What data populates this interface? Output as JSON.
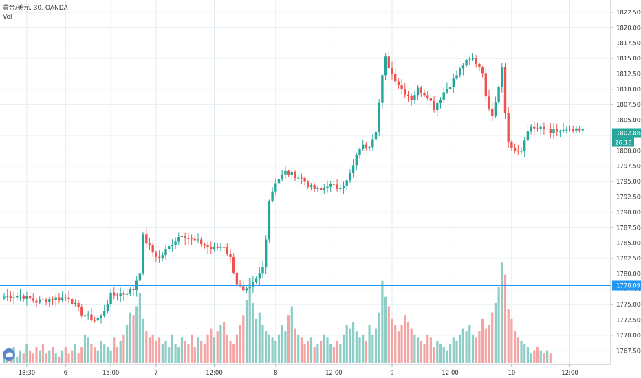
{
  "chart_data": {
    "type": "candlestick",
    "title": "黄金/美元, 30, OANDA",
    "volume_label": "Vol",
    "y_ticks": [
      1822.5,
      1820,
      1817.5,
      1815,
      1812.5,
      1810,
      1807.5,
      1805,
      1802.5,
      1800,
      1797.5,
      1795,
      1792.5,
      1790,
      1787.5,
      1785,
      1782.5,
      1780,
      1777.5,
      1775,
      1772.5,
      1770,
      1767.5
    ],
    "y_tick_labels": [
      "1822.500",
      "1820.000",
      "1817.500",
      "1815.000",
      "1812.500",
      "1810.000",
      "1807.500",
      "1805.000",
      "1802.500",
      "1800.000",
      "1797.500",
      "1795.000",
      "1792.500",
      "1790.000",
      "1787.500",
      "1785.000",
      "1782.500",
      "1780.000",
      "1777.500",
      "1775.000",
      "1772.500",
      "1770.000",
      "1767.500"
    ],
    "ylim": [
      1765.3,
      1824.5
    ],
    "x_ticks": [
      {
        "label": "18:30",
        "bar": 7
      },
      {
        "label": "6",
        "bar": 19
      },
      {
        "label": "15:00",
        "bar": 33
      },
      {
        "label": "7",
        "bar": 47
      },
      {
        "label": "12:00",
        "bar": 65
      },
      {
        "label": "8",
        "bar": 84
      },
      {
        "label": "12:00",
        "bar": 102
      },
      {
        "label": "9",
        "bar": 120
      },
      {
        "label": "12:00",
        "bar": 138
      },
      {
        "label": "10",
        "bar": 157
      },
      {
        "label": "12:00",
        "bar": 175
      }
    ],
    "bar_count": 180,
    "anchors": [
      [
        0,
        1776.3
      ],
      [
        5,
        1776.5
      ],
      [
        10,
        1775.5
      ],
      [
        15,
        1776.0
      ],
      [
        20,
        1776.2
      ],
      [
        24,
        1773.5
      ],
      [
        28,
        1772.5
      ],
      [
        30,
        1773.0
      ],
      [
        33,
        1776.5
      ],
      [
        37,
        1776.8
      ],
      [
        40,
        1777.5
      ],
      [
        42,
        1780.5
      ],
      [
        43,
        1786.0
      ],
      [
        46,
        1783.5
      ],
      [
        48,
        1782.5
      ],
      [
        52,
        1785.0
      ],
      [
        55,
        1786.5
      ],
      [
        58,
        1785.5
      ],
      [
        61,
        1785.0
      ],
      [
        64,
        1784.0
      ],
      [
        68,
        1784.5
      ],
      [
        70,
        1782.5
      ],
      [
        72,
        1778.5
      ],
      [
        74,
        1777.0
      ],
      [
        76,
        1777.5
      ],
      [
        78,
        1779.0
      ],
      [
        80,
        1781.0
      ],
      [
        81,
        1786.0
      ],
      [
        82,
        1792.0
      ],
      [
        84,
        1795.0
      ],
      [
        87,
        1796.5
      ],
      [
        90,
        1796.0
      ],
      [
        92,
        1795.5
      ],
      [
        95,
        1794.0
      ],
      [
        98,
        1793.5
      ],
      [
        100,
        1794.5
      ],
      [
        103,
        1794.0
      ],
      [
        106,
        1795.0
      ],
      [
        108,
        1797.5
      ],
      [
        110,
        1800.5
      ],
      [
        113,
        1801.0
      ],
      [
        115,
        1803.5
      ],
      [
        117,
        1812.0
      ],
      [
        118,
        1815.0
      ],
      [
        120,
        1812.5
      ],
      [
        123,
        1810.0
      ],
      [
        126,
        1808.5
      ],
      [
        128,
        1810.0
      ],
      [
        131,
        1809.0
      ],
      [
        133,
        1807.0
      ],
      [
        136,
        1809.5
      ],
      [
        139,
        1811.5
      ],
      [
        142,
        1814.0
      ],
      [
        145,
        1815.0
      ],
      [
        148,
        1813.0
      ],
      [
        149,
        1808.5
      ],
      [
        151,
        1806.0
      ],
      [
        153,
        1810.5
      ],
      [
        154,
        1814.0
      ],
      [
        155,
        1806.0
      ],
      [
        156,
        1801.5
      ],
      [
        157,
        1800.5
      ],
      [
        159,
        1799.5
      ],
      [
        160,
        1800.0
      ],
      [
        162,
        1803.5
      ],
      [
        166,
        1803.5
      ],
      [
        169,
        1803.2
      ]
    ],
    "volume_range": [
      0,
      29
    ],
    "volumes": [
      3,
      4,
      3,
      5,
      2,
      4,
      3,
      6,
      4,
      3,
      5,
      4,
      6,
      3,
      4,
      5,
      3,
      2,
      4,
      5,
      3,
      4,
      6,
      3,
      5,
      9,
      8,
      6,
      5,
      4,
      7,
      6,
      5,
      4,
      8,
      5,
      7,
      9,
      12,
      16,
      15,
      18,
      22,
      14,
      10,
      8,
      9,
      7,
      8,
      6,
      7,
      5,
      9,
      6,
      5,
      8,
      7,
      6,
      9,
      5,
      8,
      7,
      6,
      9,
      11,
      8,
      10,
      12,
      13,
      9,
      7,
      6,
      9,
      12,
      15,
      20,
      27,
      19,
      14,
      16,
      12,
      10,
      9,
      8,
      7,
      9,
      12,
      10,
      15,
      18,
      11,
      9,
      8,
      6,
      7,
      8,
      5,
      6,
      7,
      9,
      8,
      6,
      5,
      7,
      6,
      9,
      12,
      11,
      13,
      10,
      8,
      9,
      7,
      12,
      9,
      11,
      16,
      26,
      21,
      18,
      14,
      12,
      10,
      12,
      15,
      13,
      11,
      9,
      8,
      7,
      6,
      9,
      8,
      5,
      7,
      6,
      5,
      4,
      6,
      8,
      7,
      9,
      11,
      10,
      12,
      9,
      8,
      10,
      14,
      11,
      12,
      16,
      19,
      24,
      32,
      28,
      17,
      14,
      10,
      8,
      7,
      6,
      5,
      3,
      4,
      5,
      4,
      3,
      4,
      3
    ],
    "crosshair_price": 1778.093,
    "crosshair_price_label": "1778.093",
    "last_price": 1802.884,
    "last_price_label": "1802.884",
    "countdown_label": "26:18",
    "colors": {
      "up": "#26a69a",
      "down": "#ef5350",
      "up_volume": "#8ccdc6",
      "down_volume": "#f4a5a3",
      "grid": "#e1ecf2",
      "axis_text": "#333333",
      "last_price_line": "#26a69a",
      "crosshair": "#2196f3",
      "watermark": "#5c86c9"
    },
    "watermark_icon": "cloud-logo-icon"
  }
}
